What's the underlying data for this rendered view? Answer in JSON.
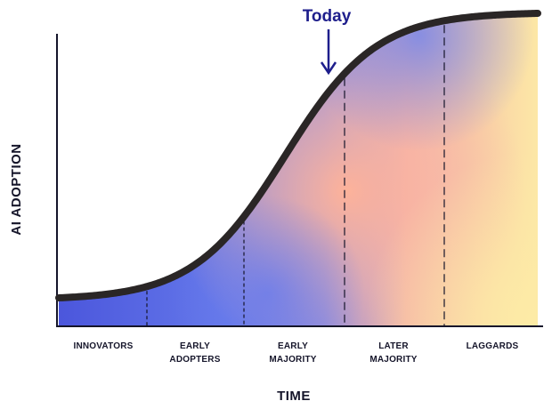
{
  "diagram": {
    "y_axis_label": "AI ADOPTION",
    "x_axis_label": "TIME",
    "today_label": "Today",
    "segments": [
      {
        "line1": "INNOVATORS",
        "line2": ""
      },
      {
        "line1": "EARLY",
        "line2": "ADOPTERS"
      },
      {
        "line1": "EARLY",
        "line2": "MAJORITY"
      },
      {
        "line1": "LATER",
        "line2": "MAJORITY"
      },
      {
        "line1": "LAGGARDS",
        "line2": ""
      }
    ],
    "colors": {
      "curve": "#2a2626",
      "today": "#1e1e8c",
      "fill_blue": "#5a6ae8",
      "fill_peach": "#fbb49a",
      "fill_yellow": "#fdeaa6",
      "text": "#15152a"
    }
  }
}
